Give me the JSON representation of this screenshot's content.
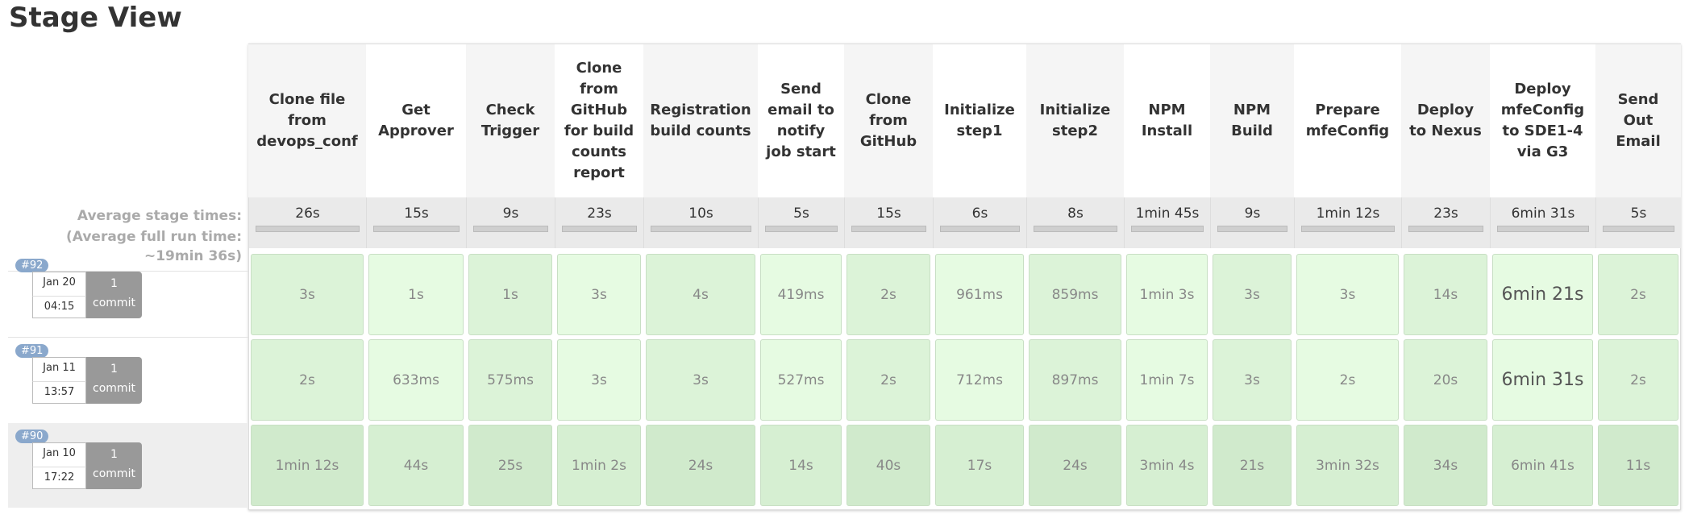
{
  "header": {
    "title": "Stage View"
  },
  "average": {
    "label": "Average stage times:",
    "full_run": "(Average full run time: ~19min 36s)"
  },
  "stages": [
    {
      "name": "Clone file from devops_conf",
      "average": "26s"
    },
    {
      "name": "Get Approver",
      "average": "15s"
    },
    {
      "name": "Check Trigger",
      "average": "9s"
    },
    {
      "name": "Clone from GitHub for build counts report",
      "average": "23s"
    },
    {
      "name": "Registration build counts",
      "average": "10s"
    },
    {
      "name": "Send email to notify job start",
      "average": "5s"
    },
    {
      "name": "Clone from GitHub",
      "average": "15s"
    },
    {
      "name": "Initialize step1",
      "average": "6s"
    },
    {
      "name": "Initialize step2",
      "average": "8s"
    },
    {
      "name": "NPM Install",
      "average": "1min 45s"
    },
    {
      "name": "NPM Build",
      "average": "9s"
    },
    {
      "name": "Prepare mfeConfig",
      "average": "1min 12s"
    },
    {
      "name": "Deploy to Nexus",
      "average": "23s"
    },
    {
      "name": "Deploy mfeConfig to SDE1-4 via G3",
      "average": "6min 31s"
    },
    {
      "name": "Send Out Email",
      "average": "5s"
    }
  ],
  "builds": [
    {
      "id": "#92",
      "date": "Jan 20",
      "time": "04:15",
      "commits": "1",
      "commit_label": "commit",
      "durations": [
        "3s",
        "1s",
        "1s",
        "3s",
        "4s",
        "419ms",
        "2s",
        "961ms",
        "859ms",
        "1min 3s",
        "3s",
        "3s",
        "14s",
        "6min 21s",
        "2s"
      ]
    },
    {
      "id": "#91",
      "date": "Jan 11",
      "time": "13:57",
      "commits": "1",
      "commit_label": "commit",
      "durations": [
        "2s",
        "633ms",
        "575ms",
        "3s",
        "3s",
        "527ms",
        "2s",
        "712ms",
        "897ms",
        "1min 7s",
        "3s",
        "2s",
        "20s",
        "6min 31s",
        "2s"
      ]
    },
    {
      "id": "#90",
      "date": "Jan 10",
      "time": "17:22",
      "commits": "1",
      "commit_label": "commit",
      "durations": [
        "1min 12s",
        "44s",
        "25s",
        "1min 2s",
        "24s",
        "14s",
        "40s",
        "17s",
        "24s",
        "3min 4s",
        "21s",
        "3min 32s",
        "34s",
        "6min 41s",
        "11s"
      ]
    }
  ]
}
